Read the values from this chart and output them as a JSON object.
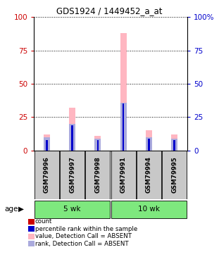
{
  "title": "GDS1924 / 1449452_a_at",
  "samples": [
    "GSM79996",
    "GSM79997",
    "GSM79998",
    "GSM79991",
    "GSM79994",
    "GSM79995"
  ],
  "group_color": "#7ee87e",
  "group_spans": [
    [
      0,
      2,
      "5 wk"
    ],
    [
      3,
      5,
      "10 wk"
    ]
  ],
  "bar_width": 0.25,
  "value_absent": [
    12,
    32,
    11,
    88,
    15,
    12
  ],
  "rank_absent": [
    10,
    20,
    9,
    36,
    10,
    9
  ],
  "count_red": [
    1,
    1,
    1,
    1,
    1,
    1
  ],
  "rank_blue": [
    8,
    19,
    8,
    35,
    9,
    8
  ],
  "ylim": [
    0,
    100
  ],
  "yticks": [
    0,
    25,
    50,
    75,
    100
  ],
  "left_tick_color": "#cc0000",
  "right_tick_color": "#0000cc",
  "legend_colors": [
    "#cc0000",
    "#0000cc",
    "#ffb6c1",
    "#aaaadd"
  ],
  "legend_labels": [
    "count",
    "percentile rank within the sample",
    "value, Detection Call = ABSENT",
    "rank, Detection Call = ABSENT"
  ],
  "sample_box_color": "#c8c8c8",
  "age_label": "age"
}
